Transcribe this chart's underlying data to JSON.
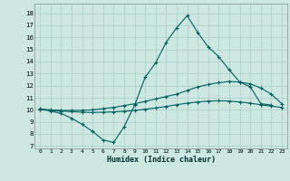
{
  "title": "",
  "xlabel": "Humidex (Indice chaleur)",
  "bg_color": "#cce8e0",
  "grid_color": "#aacccc",
  "line_color": "#006060",
  "xlim": [
    -0.5,
    23.5
  ],
  "ylim": [
    6.8,
    18.8
  ],
  "yticks": [
    7,
    8,
    9,
    10,
    11,
    12,
    13,
    14,
    15,
    16,
    17,
    18
  ],
  "xticks": [
    0,
    1,
    2,
    3,
    4,
    5,
    6,
    7,
    8,
    9,
    10,
    11,
    12,
    13,
    14,
    15,
    16,
    17,
    18,
    19,
    20,
    21,
    22,
    23
  ],
  "line1_x": [
    0,
    1,
    2,
    3,
    4,
    5,
    6,
    7,
    8,
    9,
    10,
    11,
    12,
    13,
    14,
    15,
    16,
    17,
    18,
    19,
    20,
    21,
    22
  ],
  "line1_y": [
    10.1,
    9.9,
    9.7,
    9.3,
    8.8,
    8.2,
    7.5,
    7.3,
    8.6,
    10.4,
    12.7,
    13.9,
    15.6,
    16.8,
    17.8,
    16.4,
    15.2,
    14.4,
    13.3,
    12.3,
    11.9,
    10.5,
    10.4
  ],
  "line2_x": [
    0,
    1,
    2,
    3,
    4,
    5,
    6,
    7,
    8,
    9,
    10,
    11,
    12,
    13,
    14,
    15,
    16,
    17,
    18,
    19,
    20,
    21,
    22,
    23
  ],
  "line2_y": [
    10.05,
    10.0,
    9.95,
    9.95,
    9.95,
    10.0,
    10.1,
    10.2,
    10.35,
    10.5,
    10.7,
    10.9,
    11.1,
    11.3,
    11.6,
    11.9,
    12.1,
    12.25,
    12.35,
    12.3,
    12.15,
    11.8,
    11.3,
    10.5
  ],
  "line3_x": [
    0,
    1,
    2,
    3,
    4,
    5,
    6,
    7,
    8,
    9,
    10,
    11,
    12,
    13,
    14,
    15,
    16,
    17,
    18,
    19,
    20,
    21,
    22,
    23
  ],
  "line3_y": [
    10.0,
    9.95,
    9.9,
    9.85,
    9.8,
    9.78,
    9.8,
    9.83,
    9.88,
    9.95,
    10.05,
    10.15,
    10.28,
    10.42,
    10.55,
    10.65,
    10.72,
    10.75,
    10.72,
    10.65,
    10.55,
    10.42,
    10.3,
    10.2
  ]
}
